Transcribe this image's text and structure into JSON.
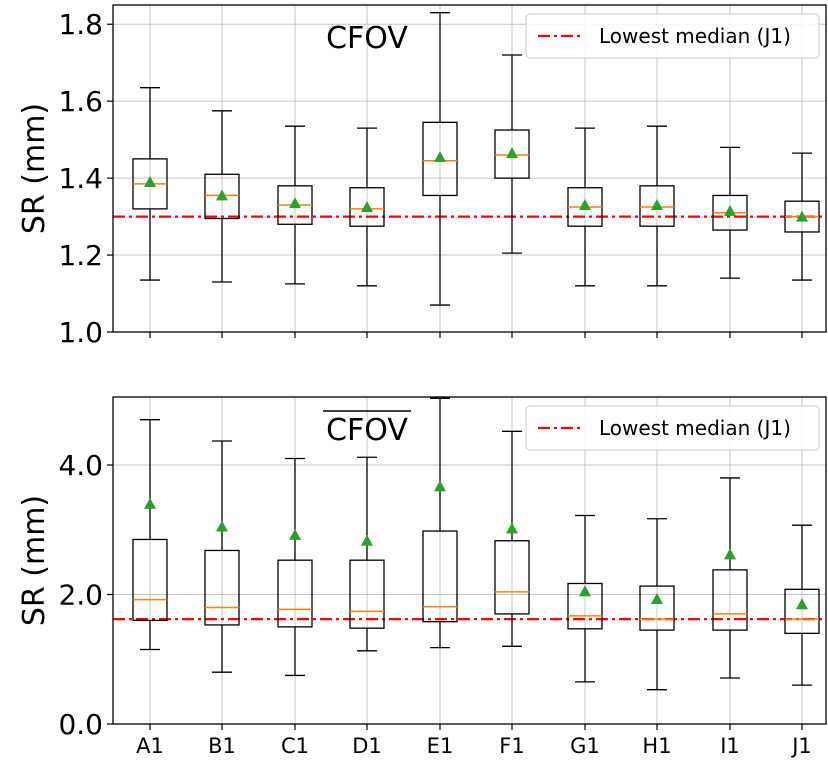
{
  "chart_data": [
    {
      "type": "box",
      "title": "CFOV",
      "ylabel": "SR (mm)",
      "ylim": [
        1.0,
        1.85
      ],
      "yticks": [
        "1.0",
        "1.2",
        "1.4",
        "1.6",
        "1.8"
      ],
      "grid": true,
      "legend_position": "top-right",
      "reference_line": {
        "name": "Lowest median (J1)",
        "value": 1.3,
        "color": "#ff0000"
      },
      "categories": [
        "A1",
        "B1",
        "C1",
        "D1",
        "E1",
        "F1",
        "G1",
        "H1",
        "I1",
        "J1"
      ],
      "boxes": [
        {
          "whisker_low": 1.135,
          "q1": 1.32,
          "median": 1.385,
          "q3": 1.45,
          "whisker_high": 1.635,
          "mean": 1.39
        },
        {
          "whisker_low": 1.13,
          "q1": 1.295,
          "median": 1.355,
          "q3": 1.41,
          "whisker_high": 1.575,
          "mean": 1.355
        },
        {
          "whisker_low": 1.125,
          "q1": 1.28,
          "median": 1.33,
          "q3": 1.38,
          "whisker_high": 1.535,
          "mean": 1.335
        },
        {
          "whisker_low": 1.12,
          "q1": 1.275,
          "median": 1.32,
          "q3": 1.375,
          "whisker_high": 1.53,
          "mean": 1.325
        },
        {
          "whisker_low": 1.07,
          "q1": 1.355,
          "median": 1.445,
          "q3": 1.545,
          "whisker_high": 1.83,
          "mean": 1.455
        },
        {
          "whisker_low": 1.205,
          "q1": 1.4,
          "median": 1.46,
          "q3": 1.525,
          "whisker_high": 1.72,
          "mean": 1.465
        },
        {
          "whisker_low": 1.12,
          "q1": 1.275,
          "median": 1.325,
          "q3": 1.375,
          "whisker_high": 1.53,
          "mean": 1.33
        },
        {
          "whisker_low": 1.12,
          "q1": 1.275,
          "median": 1.325,
          "q3": 1.38,
          "whisker_high": 1.535,
          "mean": 1.33
        },
        {
          "whisker_low": 1.14,
          "q1": 1.265,
          "median": 1.31,
          "q3": 1.355,
          "whisker_high": 1.48,
          "mean": 1.315
        },
        {
          "whisker_low": 1.135,
          "q1": 1.26,
          "median": 1.3,
          "q3": 1.34,
          "whisker_high": 1.465,
          "mean": 1.3
        }
      ]
    },
    {
      "type": "box",
      "title": "CFOV",
      "title_overline": true,
      "ylabel": "SR (mm)",
      "ylim": [
        0.0,
        5.05
      ],
      "yticks": [
        "0.0",
        "2.0",
        "4.0"
      ],
      "grid": true,
      "legend_position": "top-right",
      "reference_line": {
        "name": "Lowest median (J1)",
        "value": 1.62,
        "color": "#ff0000"
      },
      "categories": [
        "A1",
        "B1",
        "C1",
        "D1",
        "E1",
        "F1",
        "G1",
        "H1",
        "I1",
        "J1"
      ],
      "boxes": [
        {
          "whisker_low": 1.15,
          "q1": 1.6,
          "median": 1.92,
          "q3": 2.85,
          "whisker_high": 4.7,
          "mean": 3.4
        },
        {
          "whisker_low": 0.8,
          "q1": 1.53,
          "median": 1.8,
          "q3": 2.68,
          "whisker_high": 4.37,
          "mean": 3.05
        },
        {
          "whisker_low": 0.75,
          "q1": 1.5,
          "median": 1.77,
          "q3": 2.53,
          "whisker_high": 4.1,
          "mean": 2.92
        },
        {
          "whisker_low": 1.13,
          "q1": 1.48,
          "median": 1.74,
          "q3": 2.53,
          "whisker_high": 4.12,
          "mean": 2.83
        },
        {
          "whisker_low": 1.18,
          "q1": 1.58,
          "median": 1.81,
          "q3": 2.98,
          "whisker_high": 5.03,
          "mean": 3.67
        },
        {
          "whisker_low": 1.2,
          "q1": 1.7,
          "median": 2.04,
          "q3": 2.83,
          "whisker_high": 4.52,
          "mean": 3.02
        },
        {
          "whisker_low": 0.65,
          "q1": 1.47,
          "median": 1.67,
          "q3": 2.17,
          "whisker_high": 3.22,
          "mean": 2.05
        },
        {
          "whisker_low": 0.53,
          "q1": 1.45,
          "median": 1.62,
          "q3": 2.13,
          "whisker_high": 3.17,
          "mean": 1.93
        },
        {
          "whisker_low": 0.71,
          "q1": 1.45,
          "median": 1.7,
          "q3": 2.38,
          "whisker_high": 3.8,
          "mean": 2.62
        },
        {
          "whisker_low": 0.6,
          "q1": 1.4,
          "median": 1.62,
          "q3": 2.08,
          "whisker_high": 3.07,
          "mean": 1.85
        }
      ]
    }
  ],
  "colors": {
    "median": "#ff7f0e",
    "mean_marker": "#2ca02c",
    "reference": "#ff0000",
    "box": "#000000",
    "grid": "#b0b0b0"
  }
}
